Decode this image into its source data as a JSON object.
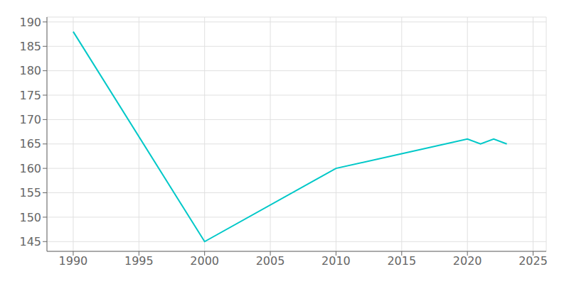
{
  "chart_data": {
    "type": "line",
    "x": [
      1990,
      2000,
      2010,
      2015,
      2020,
      2021,
      2022,
      2023
    ],
    "values": [
      188,
      145,
      160,
      163,
      166,
      165,
      166,
      165
    ],
    "color": "#00c8c8",
    "xlim": [
      1988,
      2026
    ],
    "ylim": [
      143,
      191
    ],
    "xticks": [
      1990,
      1995,
      2000,
      2005,
      2010,
      2015,
      2020,
      2025
    ],
    "yticks": [
      145,
      150,
      155,
      160,
      165,
      170,
      175,
      180,
      185,
      190
    ],
    "grid": true
  }
}
